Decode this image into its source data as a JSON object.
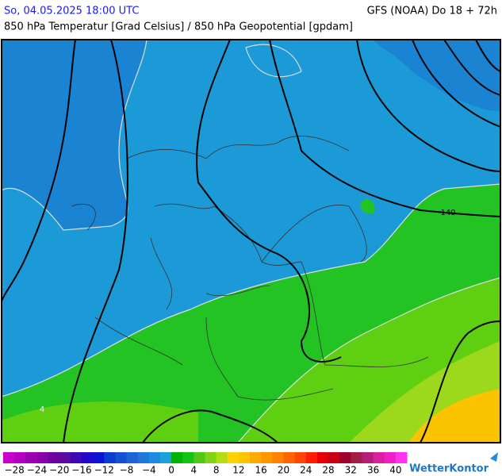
{
  "header": {
    "left": "So, 04.05.2025 18:00 UTC",
    "right": "GFS (NOAA) Do 18 + 72h",
    "subtitle": "850 hPa Temperatur [Grad Celsius] / 850 hPa Geopotential [gpdam]"
  },
  "map": {
    "labels": [
      "140",
      "4"
    ]
  },
  "colorbar": {
    "range": [
      -30,
      42
    ],
    "colors": [
      "#cc00cc",
      "#b400c0",
      "#9c00b4",
      "#8800aa",
      "#6e00a0",
      "#5a0aa0",
      "#3c0ab4",
      "#1e0ac8",
      "#0a14d2",
      "#0a3cd2",
      "#1450d2",
      "#1e64d7",
      "#1e78dc",
      "#1e8cdc",
      "#1ea0dc",
      "#00b400",
      "#14c314",
      "#50c814",
      "#82d214",
      "#b4dc14",
      "#ffd200",
      "#ffc300",
      "#ffaa00",
      "#ff9600",
      "#ff8200",
      "#ff6400",
      "#ff4600",
      "#ff1e00",
      "#e60000",
      "#c80014",
      "#a00028",
      "#a01e46",
      "#b41e78",
      "#dc1ea0",
      "#f01ec8",
      "#ff32f0"
    ],
    "ticks": [
      {
        "value": -28,
        "label": "−28"
      },
      {
        "value": -24,
        "label": "−24"
      },
      {
        "value": -20,
        "label": "−20"
      },
      {
        "value": -16,
        "label": "−16"
      },
      {
        "value": -12,
        "label": "−12"
      },
      {
        "value": -8,
        "label": "−8"
      },
      {
        "value": -4,
        "label": "−4"
      },
      0,
      4,
      8,
      12,
      16,
      20,
      24,
      28,
      32,
      36,
      40
    ]
  },
  "logo": "WetterKontor"
}
